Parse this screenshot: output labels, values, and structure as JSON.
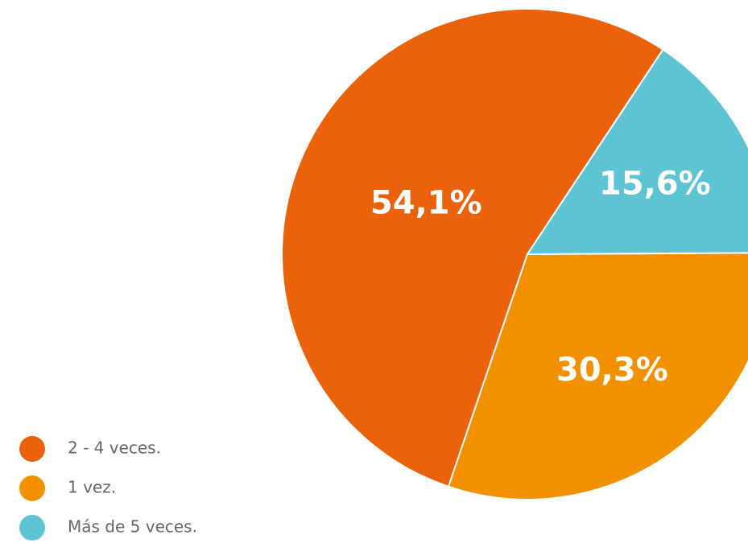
{
  "chart_data": {
    "type": "pie",
    "categories": [
      "2 - 4 veces.",
      "1 vez.",
      "Más de 5 veces."
    ],
    "values": [
      54.1,
      30.3,
      15.6
    ],
    "value_labels": [
      "54,1%",
      "30,3%",
      "15,6%"
    ],
    "colors": [
      "#eb620b",
      "#f39000",
      "#5dc4d4"
    ]
  }
}
